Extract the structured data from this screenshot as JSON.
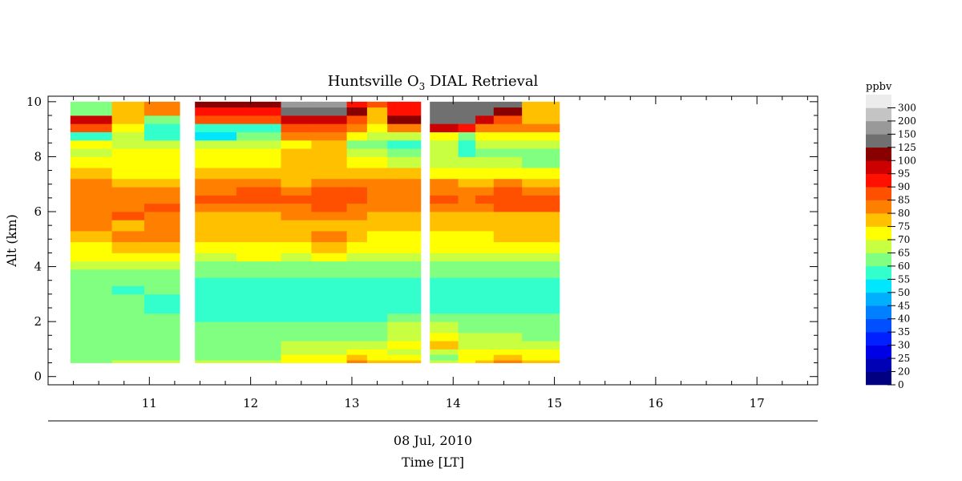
{
  "chart_data": {
    "type": "heatmap",
    "title_main": "Huntsville O",
    "title_sub": "3",
    "title_rest": " DIAL Retrieval",
    "ylabel": "Alt (km)",
    "xlabel_date": "08 Jul, 2010",
    "xlabel": "Time [LT]",
    "xlim": [
      10.0,
      17.6
    ],
    "ylim": [
      -0.3,
      10.2
    ],
    "x_ticks": [
      11,
      12,
      13,
      14,
      15,
      16,
      17
    ],
    "y_ticks": [
      0,
      2,
      4,
      6,
      8,
      10
    ],
    "colorbar": {
      "label": "ppbv",
      "levels": [
        "0",
        "20",
        "25",
        "30",
        "35",
        "40",
        "45",
        "50",
        "55",
        "60",
        "65",
        "70",
        "75",
        "80",
        "85",
        "90",
        "95",
        "100",
        "125",
        "150",
        "200",
        "300"
      ],
      "colors": [
        "#000080",
        "#0000b4",
        "#0000e6",
        "#0020ff",
        "#0050ff",
        "#0080ff",
        "#00b0ff",
        "#00e6ff",
        "#33ffcc",
        "#80ff80",
        "#c8ff40",
        "#ffff00",
        "#ffc000",
        "#ff8000",
        "#ff5000",
        "#ff1000",
        "#cc0000",
        "#880000",
        "#707070",
        "#999999",
        "#c4c4c4",
        "#ececec"
      ]
    },
    "alt_bins": [
      0.5,
      0.6,
      0.8,
      1.0,
      1.3,
      1.6,
      2.0,
      2.3,
      2.6,
      3.0,
      3.3,
      3.6,
      3.9,
      4.2,
      4.5,
      4.9,
      5.3,
      5.7,
      6.0,
      6.3,
      6.6,
      6.9,
      7.2,
      7.6,
      8.0,
      8.3,
      8.6,
      8.9,
      9.2,
      9.5,
      9.8,
      10.0
    ],
    "profiles": [
      {
        "t0": 10.22,
        "t1": 10.63,
        "v": [
          60,
          60,
          60,
          60,
          60,
          60,
          60,
          60,
          60,
          60,
          60,
          60,
          65,
          70,
          72,
          76,
          82,
          82,
          82,
          82,
          82,
          80,
          76,
          72,
          65,
          70,
          55,
          85,
          95,
          60,
          60
        ]
      },
      {
        "t0": 10.63,
        "t1": 10.95,
        "v": [
          65,
          60,
          60,
          60,
          60,
          60,
          60,
          60,
          60,
          55,
          60,
          60,
          65,
          72,
          75,
          80,
          78,
          85,
          80,
          82,
          80,
          76,
          72,
          72,
          70,
          65,
          65,
          70,
          75,
          75,
          75
        ]
      },
      {
        "t0": 10.95,
        "t1": 11.3,
        "v": [
          65,
          60,
          60,
          60,
          60,
          60,
          60,
          55,
          55,
          60,
          60,
          60,
          65,
          70,
          75,
          80,
          82,
          80,
          85,
          80,
          80,
          76,
          72,
          72,
          70,
          68,
          55,
          55,
          60,
          80,
          80
        ]
      },
      {
        "t0": 11.45,
        "t1": 11.86,
        "v": [
          65,
          60,
          60,
          60,
          60,
          60,
          55,
          55,
          55,
          55,
          55,
          60,
          60,
          65,
          70,
          75,
          78,
          78,
          80,
          85,
          80,
          80,
          76,
          72,
          70,
          65,
          52,
          58,
          85,
          92,
          100
        ]
      },
      {
        "t0": 11.86,
        "t1": 12.3,
        "v": [
          65,
          60,
          60,
          60,
          60,
          60,
          55,
          55,
          55,
          55,
          55,
          60,
          60,
          70,
          72,
          75,
          78,
          78,
          82,
          85,
          85,
          80,
          76,
          72,
          70,
          65,
          60,
          55,
          85,
          92,
          100
        ]
      },
      {
        "t0": 12.3,
        "t1": 12.6,
        "v": [
          72,
          70,
          65,
          65,
          60,
          60,
          55,
          55,
          55,
          55,
          55,
          60,
          60,
          65,
          70,
          75,
          78,
          80,
          82,
          88,
          80,
          78,
          76,
          76,
          75,
          70,
          80,
          85,
          95,
          125,
          150
        ]
      },
      {
        "t0": 12.6,
        "t1": 12.95,
        "v": [
          72,
          70,
          65,
          65,
          60,
          60,
          55,
          55,
          55,
          55,
          55,
          60,
          60,
          70,
          75,
          82,
          78,
          80,
          85,
          88,
          85,
          80,
          76,
          76,
          75,
          75,
          80,
          85,
          95,
          125,
          150
        ]
      },
      {
        "t0": 12.95,
        "t1": 13.15,
        "v": [
          80,
          75,
          72,
          65,
          60,
          60,
          55,
          55,
          55,
          55,
          55,
          60,
          60,
          65,
          70,
          75,
          78,
          80,
          82,
          85,
          85,
          80,
          76,
          70,
          65,
          60,
          72,
          80,
          85,
          100,
          90
        ]
      },
      {
        "t0": 13.15,
        "t1": 13.35,
        "v": [
          75,
          72,
          70,
          65,
          60,
          60,
          55,
          55,
          55,
          55,
          55,
          60,
          60,
          65,
          70,
          72,
          75,
          78,
          80,
          82,
          82,
          80,
          75,
          70,
          65,
          60,
          65,
          70,
          75,
          75,
          85
        ]
      },
      {
        "t0": 13.35,
        "t1": 13.68,
        "v": [
          75,
          72,
          65,
          72,
          65,
          65,
          60,
          55,
          55,
          55,
          55,
          60,
          60,
          65,
          70,
          72,
          75,
          78,
          80,
          82,
          82,
          80,
          76,
          65,
          60,
          55,
          65,
          80,
          100,
          90,
          90
        ]
      },
      {
        "t0": 13.77,
        "t1": 14.05,
        "v": [
          65,
          60,
          65,
          75,
          72,
          65,
          60,
          55,
          55,
          55,
          55,
          60,
          60,
          65,
          70,
          72,
          75,
          78,
          80,
          85,
          80,
          80,
          72,
          65,
          65,
          65,
          70,
          95,
          125,
          125,
          125
        ]
      },
      {
        "t0": 14.05,
        "t1": 14.22,
        "v": [
          70,
          72,
          70,
          65,
          65,
          60,
          60,
          55,
          55,
          55,
          55,
          60,
          60,
          65,
          70,
          72,
          75,
          78,
          80,
          82,
          80,
          78,
          72,
          65,
          55,
          55,
          60,
          90,
          125,
          125,
          125
        ]
      },
      {
        "t0": 14.22,
        "t1": 14.4,
        "v": [
          75,
          72,
          70,
          65,
          65,
          60,
          60,
          55,
          55,
          55,
          55,
          60,
          60,
          65,
          70,
          72,
          75,
          78,
          82,
          85,
          80,
          76,
          72,
          65,
          60,
          65,
          70,
          80,
          95,
          125,
          125
        ]
      },
      {
        "t0": 14.4,
        "t1": 14.68,
        "v": [
          80,
          75,
          70,
          65,
          65,
          60,
          60,
          55,
          55,
          55,
          55,
          60,
          60,
          65,
          70,
          76,
          76,
          78,
          85,
          88,
          85,
          80,
          72,
          65,
          60,
          65,
          70,
          80,
          85,
          100,
          125
        ]
      },
      {
        "t0": 14.68,
        "t1": 15.05,
        "v": [
          75,
          72,
          70,
          65,
          60,
          60,
          60,
          55,
          55,
          55,
          55,
          60,
          60,
          65,
          70,
          75,
          75,
          78,
          85,
          85,
          80,
          76,
          72,
          60,
          60,
          65,
          72,
          80,
          75,
          75,
          75
        ]
      }
    ]
  }
}
